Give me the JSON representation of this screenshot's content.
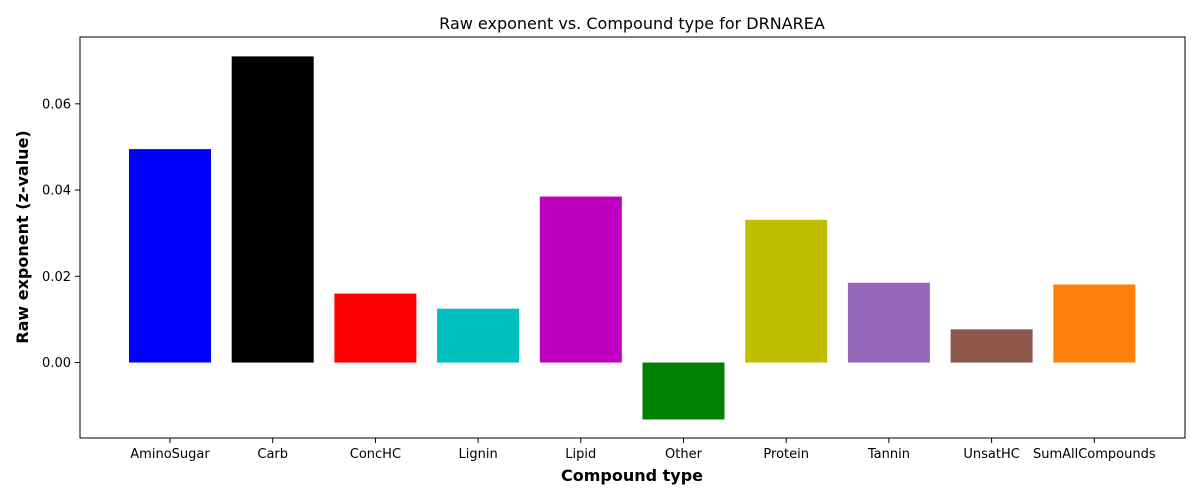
{
  "chart_data": {
    "type": "bar",
    "title": "Raw exponent vs. Compound type for DRNAREA",
    "xlabel": "Compound type",
    "ylabel": "Raw exponent (z-value)",
    "ylim": [
      -0.0175,
      0.0755
    ],
    "yticks": [
      0.0,
      0.02,
      0.04,
      0.06
    ],
    "ytick_labels": [
      "0.00",
      "0.02",
      "0.04",
      "0.06"
    ],
    "grid": false,
    "legend": "none",
    "categories": [
      "AminoSugar",
      "Carb",
      "ConcHC",
      "Lignin",
      "Lipid",
      "Other",
      "Protein",
      "Tannin",
      "UnsatHC",
      "SumAllCompounds"
    ],
    "values": [
      0.0495,
      0.071,
      0.016,
      0.0125,
      0.0385,
      -0.0132,
      0.0331,
      0.0185,
      0.0077,
      0.0181
    ],
    "colors": [
      "#0000ff",
      "#000000",
      "#ff0000",
      "#00bfbf",
      "#bf00bf",
      "#008000",
      "#bfbf00",
      "#9467bd",
      "#8c564b",
      "#ff7f0e"
    ]
  }
}
